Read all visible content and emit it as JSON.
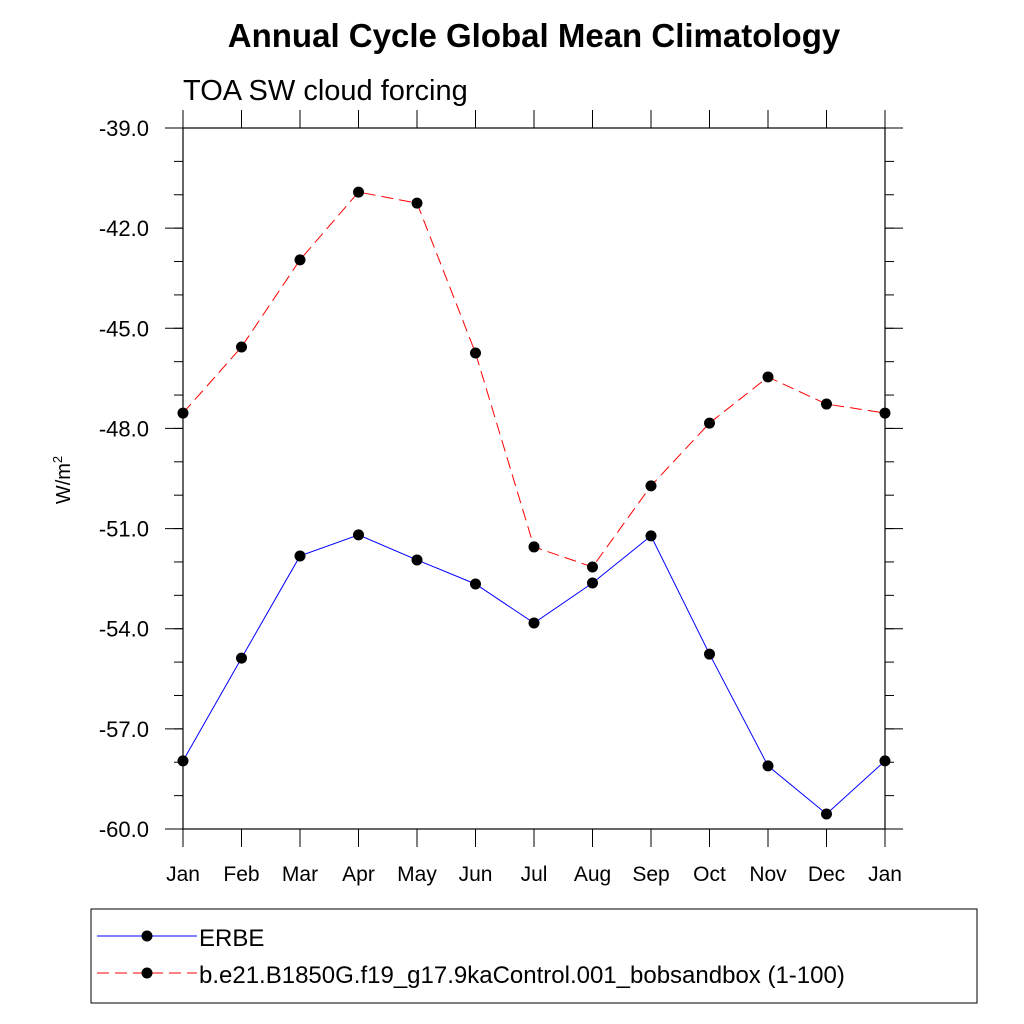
{
  "chart_data": {
    "type": "line",
    "title": "Annual Cycle Global Mean Climatology",
    "subtitle": "TOA SW cloud forcing",
    "ylabel": "W/m",
    "ylabel_superscript": "2",
    "xlabel": "",
    "categories": [
      "Jan",
      "Feb",
      "Mar",
      "Apr",
      "May",
      "Jun",
      "Jul",
      "Aug",
      "Sep",
      "Oct",
      "Nov",
      "Dec",
      "Jan"
    ],
    "ylim": [
      -60.0,
      -39.0
    ],
    "yticks": [
      -60.0,
      -57.0,
      -54.0,
      -51.0,
      -48.0,
      -45.0,
      -42.0,
      -39.0
    ],
    "ytick_labels": [
      "-60.0",
      "-57.0",
      "-54.0",
      "-51.0",
      "-48.0",
      "-45.0",
      "-42.0",
      "-39.0"
    ],
    "grid": false,
    "legend_placement": "bottom",
    "series": [
      {
        "name": "ERBE",
        "color": "#0000ff",
        "dash": "solid",
        "values": [
          -57.96,
          -54.88,
          -51.82,
          -51.19,
          -51.94,
          -52.66,
          -53.83,
          -52.63,
          -51.22,
          -54.76,
          -58.11,
          -59.55,
          -57.96
        ]
      },
      {
        "name": "b.e21.B1850G.f19_g17.9kaControl.001_bobsandbox (1-100)",
        "color": "#ff0000",
        "dash": "dashed",
        "values": [
          -47.54,
          -45.56,
          -42.95,
          -40.92,
          -41.25,
          -45.74,
          -51.55,
          -52.15,
          -49.72,
          -47.84,
          -46.46,
          -47.27,
          -47.54
        ]
      }
    ]
  }
}
